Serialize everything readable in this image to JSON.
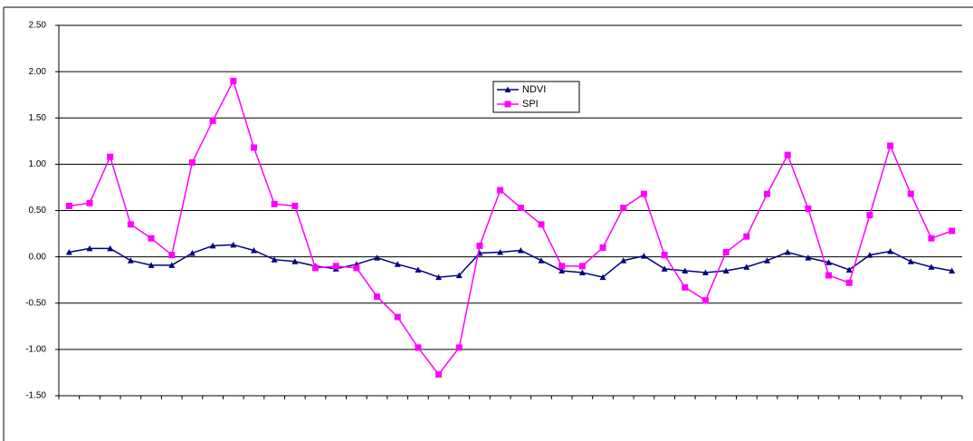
{
  "chart_data": {
    "type": "line",
    "categories": [
      null,
      null,
      null,
      null,
      null,
      null,
      null,
      null,
      null,
      null,
      null,
      null,
      null,
      null,
      null,
      null,
      null,
      null,
      null,
      null,
      null,
      null,
      null,
      null,
      null,
      null,
      null,
      null,
      null,
      null,
      null,
      null,
      null,
      null,
      null,
      null,
      null,
      null,
      null,
      null,
      null,
      null,
      null,
      null
    ],
    "series": [
      {
        "name": "NDVI",
        "color": "#000080",
        "marker": "triangle",
        "values": [
          0.05,
          0.09,
          0.09,
          -0.04,
          -0.09,
          -0.09,
          0.04,
          0.12,
          0.13,
          0.07,
          -0.03,
          -0.05,
          -0.1,
          -0.13,
          -0.08,
          -0.01,
          -0.08,
          -0.14,
          -0.22,
          -0.2,
          0.04,
          0.05,
          0.07,
          -0.04,
          -0.15,
          -0.17,
          -0.22,
          -0.04,
          0.01,
          -0.13,
          -0.15,
          -0.17,
          -0.15,
          -0.11,
          -0.04,
          0.05,
          -0.01,
          -0.06,
          -0.14,
          0.02,
          0.06,
          -0.05,
          -0.11,
          -0.15
        ]
      },
      {
        "name": "SPI",
        "color": "#ff00ff",
        "marker": "square",
        "values": [
          0.55,
          0.58,
          1.08,
          0.35,
          0.2,
          0.02,
          1.02,
          1.47,
          1.9,
          1.18,
          0.57,
          0.55,
          -0.12,
          -0.1,
          -0.12,
          -0.43,
          -0.65,
          -0.98,
          -1.27,
          -0.98,
          0.12,
          0.72,
          0.53,
          0.35,
          -0.1,
          -0.1,
          0.1,
          0.53,
          0.68,
          0.02,
          -0.33,
          -0.47,
          0.05,
          0.22,
          0.68,
          1.1,
          0.52,
          -0.2,
          -0.28,
          0.45,
          1.2,
          0.68,
          0.2,
          0.28
        ]
      }
    ],
    "ylim": [
      -1.5,
      2.5
    ],
    "yticks": [
      {
        "value": 2.5,
        "label": "2.50"
      },
      {
        "value": 2,
        "label": "2.00"
      },
      {
        "value": 1.5,
        "label": "1.50"
      },
      {
        "value": 1,
        "label": "1.00"
      },
      {
        "value": 0.5,
        "label": "0.50"
      },
      {
        "value": 0,
        "label": "0.00"
      },
      {
        "value": -0.5,
        "label": "-0.50"
      },
      {
        "value": -1,
        "label": "-1.00"
      },
      {
        "value": -1.5,
        "label": "-1.50"
      }
    ],
    "grid": true,
    "legend": "top-center"
  }
}
